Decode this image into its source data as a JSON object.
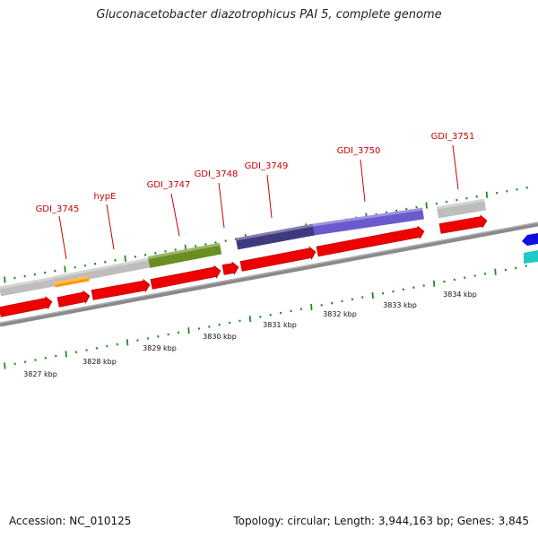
{
  "title": "Gluconacetobacter diazotrophicus PAI 5, complete genome",
  "footer": {
    "accession": "Accession: NC_010125",
    "topology": "Topology: circular; Length: 3,944,163 bp; Genes: 3,845"
  },
  "colors": {
    "cds_red": "#ee0000",
    "backbone_gray": "#8a8a8a",
    "tick_green": "#228b22",
    "label_red": "#cc0000",
    "feature_gray": "#bdbdbd",
    "feature_orange": "#ff9900",
    "feature_olive": "#6b8e23",
    "feature_darkslate": "#3f3a80",
    "feature_violet": "#6a5acd",
    "feature_blue": "#1010dd",
    "feature_cyan": "#20c8c8"
  },
  "gene_labels": [
    "GDI_3745",
    "hypE",
    "GDI_3747",
    "GDI_3748",
    "GDI_3749",
    "GDI_3750",
    "GDI_3751"
  ],
  "kbp_labels": [
    "3827 kbp",
    "3828 kbp",
    "3829 kbp",
    "3830 kbp",
    "3831 kbp",
    "3832 kbp",
    "3833 kbp",
    "3834 kbp"
  ]
}
